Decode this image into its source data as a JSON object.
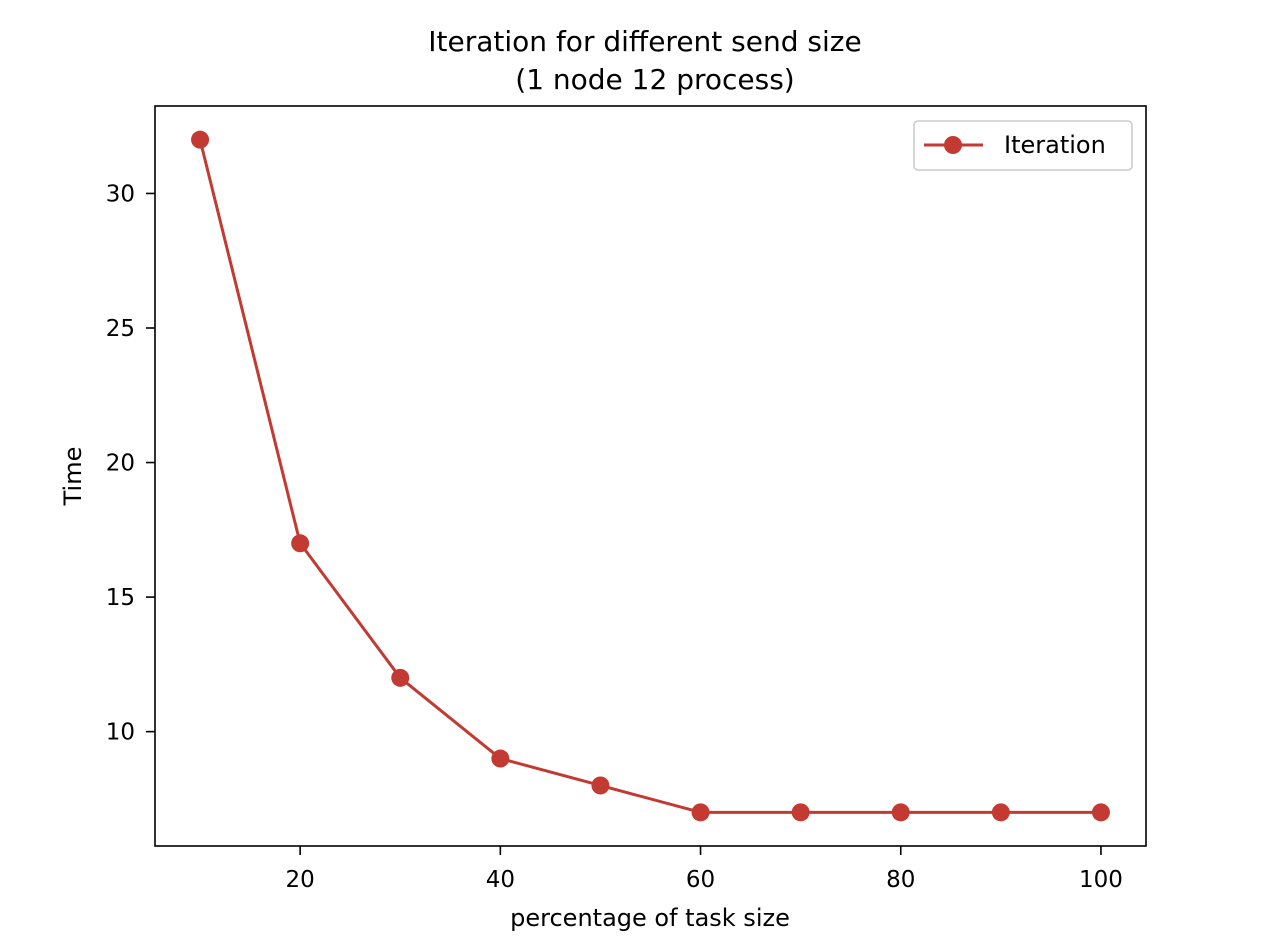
{
  "chart_data": {
    "type": "line",
    "title": "Iteration for different send size",
    "subtitle": "(1 node 12 process)",
    "xlabel": "percentage of task size",
    "ylabel": "Time",
    "xlim": [
      5.5,
      104.5
    ],
    "ylim": [
      5.75,
      33.25
    ],
    "xticks": [
      20,
      40,
      60,
      80,
      100
    ],
    "yticks": [
      10,
      15,
      20,
      25,
      30
    ],
    "grid": false,
    "legend_position": "top-right",
    "series": [
      {
        "name": "Iteration",
        "color": "#c23a31",
        "marker": "circle",
        "x": [
          10,
          20,
          30,
          40,
          50,
          60,
          70,
          80,
          90,
          100
        ],
        "y": [
          32,
          17,
          12,
          9,
          8,
          7,
          7,
          7,
          7,
          7
        ]
      }
    ]
  }
}
